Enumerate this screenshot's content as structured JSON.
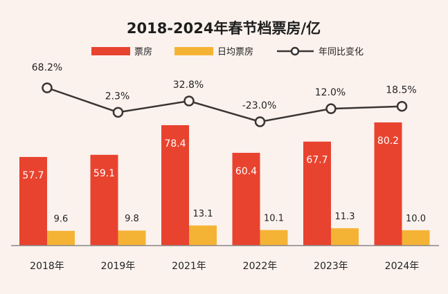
{
  "chart_data": {
    "type": "bar",
    "title": "2018-2024年春节档票房/亿",
    "categories": [
      "2018年",
      "2019年",
      "2021年",
      "2022年",
      "2023年",
      "2024年"
    ],
    "series": [
      {
        "name": "票房",
        "kind": "bar",
        "color": "#e8432f",
        "values": [
          57.7,
          59.1,
          78.4,
          60.4,
          67.7,
          80.2
        ],
        "labels": [
          "57.7",
          "59.1",
          "78.4",
          "60.4",
          "67.7",
          "80.2"
        ]
      },
      {
        "name": "日均票房",
        "kind": "bar",
        "color": "#f5b335",
        "values": [
          9.6,
          9.8,
          13.1,
          10.1,
          11.3,
          10.0
        ],
        "labels": [
          "9.6",
          "9.8",
          "13.1",
          "10.1",
          "11.3",
          "10.0"
        ]
      },
      {
        "name": "年同比变化",
        "kind": "line",
        "color": "#3a3533",
        "values": [
          68.2,
          2.3,
          32.8,
          -23.0,
          12.0,
          18.5
        ],
        "labels": [
          "68.2%",
          "2.3%",
          "32.8%",
          "-23.0%",
          "12.0%",
          "18.5%"
        ]
      }
    ],
    "legend_position": "top",
    "grid": false
  }
}
